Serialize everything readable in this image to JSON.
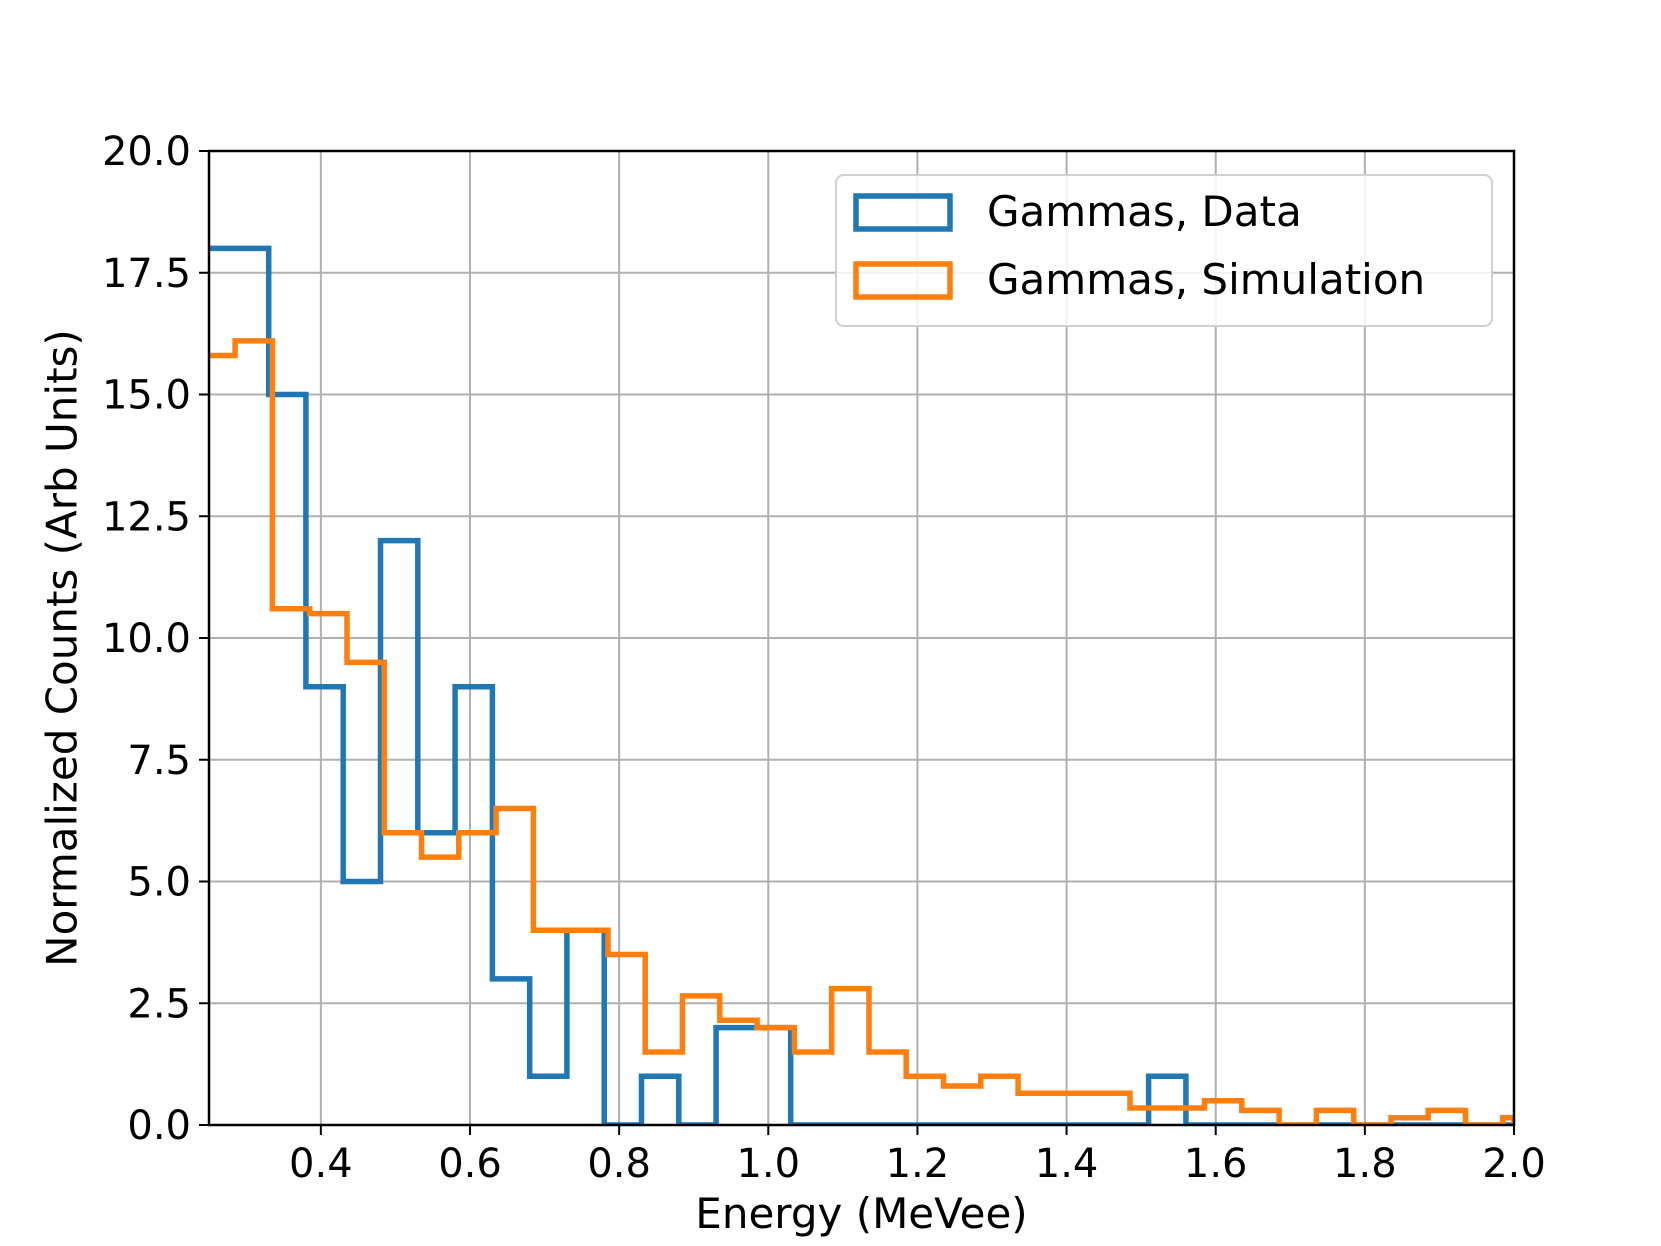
{
  "chart_data": {
    "type": "histogram",
    "xlabel": "Energy (MeVee)",
    "ylabel": "Normalized Counts (Arb Units)",
    "xlim": [
      0.25,
      2.0
    ],
    "ylim": [
      0,
      20
    ],
    "xticks": [
      "0.4",
      "0.6",
      "0.8",
      "1.0",
      "1.2",
      "1.4",
      "1.6",
      "1.8",
      "2.0"
    ],
    "xtick_values": [
      0.4,
      0.6,
      0.8,
      1.0,
      1.2,
      1.4,
      1.6,
      1.8,
      2.0
    ],
    "yticks": [
      "0.0",
      "2.5",
      "5.0",
      "7.5",
      "10.0",
      "12.5",
      "15.0",
      "17.5",
      "20.0"
    ],
    "ytick_values": [
      0,
      2.5,
      5,
      7.5,
      10,
      12.5,
      15,
      17.5,
      20
    ],
    "grid": true,
    "legend_position": "top-right",
    "series": [
      {
        "name": "Gammas, Data",
        "color": "#1f77b4",
        "bin_edges": [
          0.25,
          0.33,
          0.38,
          0.43,
          0.48,
          0.53,
          0.58,
          0.63,
          0.68,
          0.73,
          0.78,
          0.83,
          0.88,
          0.93,
          1.03,
          1.51,
          1.56,
          2.0
        ],
        "values": [
          18,
          15,
          9,
          5,
          12,
          6,
          9,
          3,
          1,
          4,
          0,
          1,
          0,
          2,
          0,
          1,
          0
        ]
      },
      {
        "name": "Gammas, Simulation",
        "color": "#ff7f0e",
        "bin_edges": [
          0.25,
          0.285,
          0.335,
          0.385,
          0.435,
          0.485,
          0.535,
          0.585,
          0.635,
          0.685,
          0.735,
          0.785,
          0.835,
          0.885,
          0.935,
          0.985,
          1.035,
          1.085,
          1.135,
          1.185,
          1.235,
          1.285,
          1.335,
          1.385,
          1.435,
          1.485,
          1.535,
          1.585,
          1.635,
          1.685,
          1.735,
          1.785,
          1.835,
          1.885,
          1.935,
          1.985,
          2.0
        ],
        "values": [
          15.8,
          16.1,
          10.6,
          10.5,
          9.5,
          6.0,
          5.5,
          6.0,
          6.5,
          4.0,
          4.0,
          3.5,
          1.5,
          2.65,
          2.15,
          2.0,
          1.5,
          2.8,
          1.5,
          1.0,
          0.8,
          1.0,
          0.65,
          0.65,
          0.65,
          0.35,
          0.35,
          0.5,
          0.3,
          0.0,
          0.3,
          0.0,
          0.15,
          0.3,
          0.0,
          0.15
        ]
      }
    ]
  }
}
